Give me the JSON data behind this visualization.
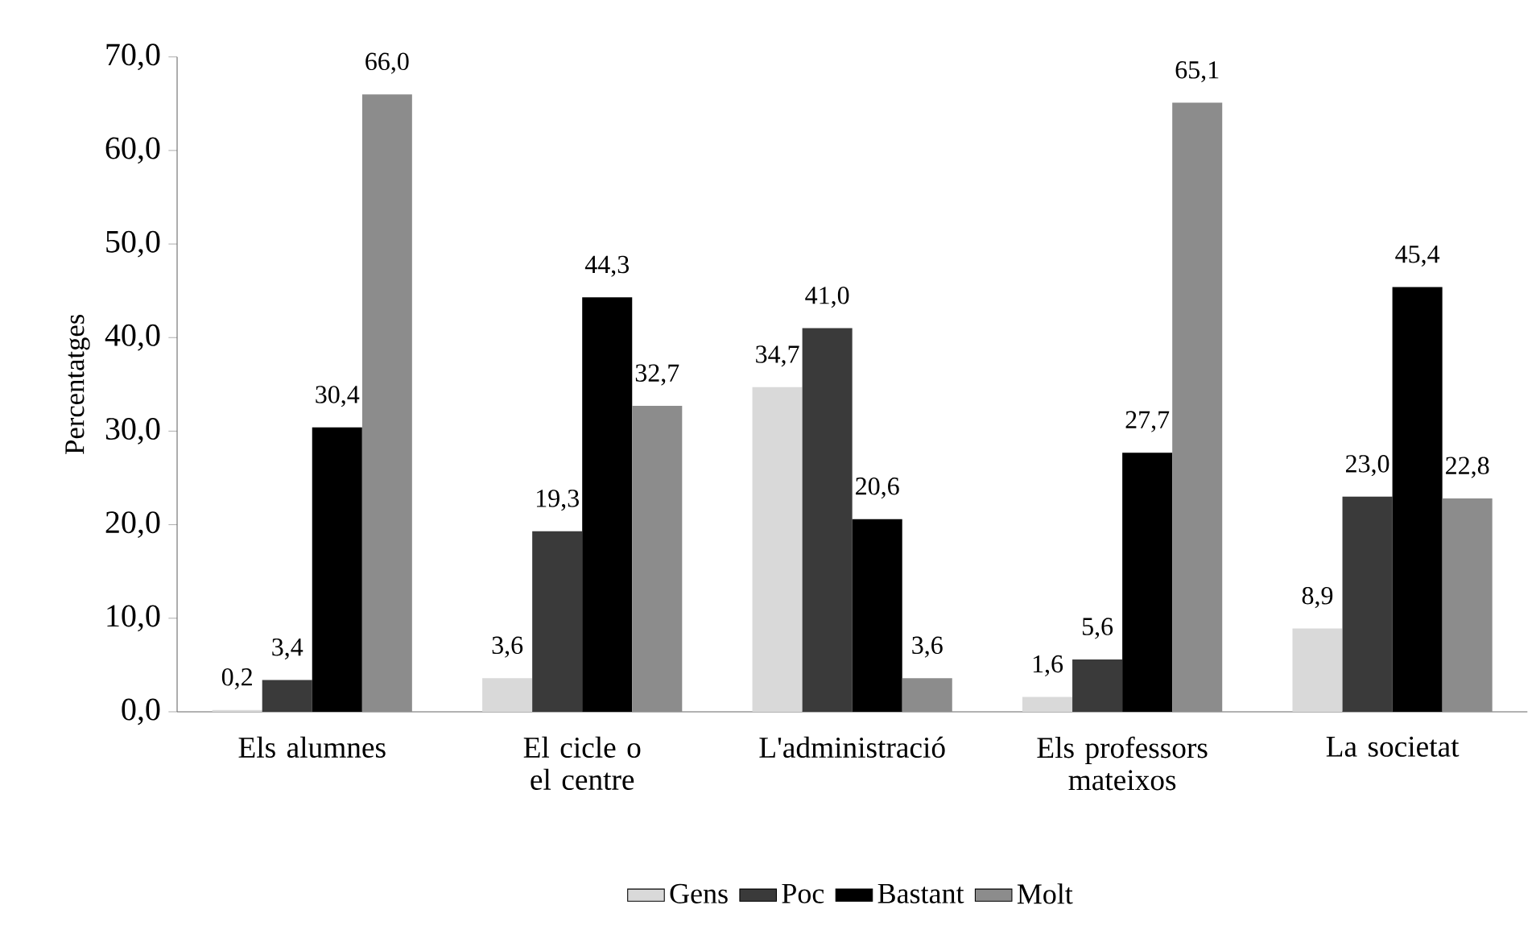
{
  "chart_data": {
    "type": "bar",
    "ylabel": "Percentatges",
    "categories": [
      "Els alumnes",
      "El cicle o el centre",
      "L'administració",
      "Els professors mateixos",
      "La societat"
    ],
    "series": [
      {
        "name": "Gens",
        "color": "#d9d9d9",
        "values": [
          0.2,
          3.6,
          34.7,
          1.6,
          8.9
        ],
        "value_labels": [
          "0,2",
          "3,6",
          "34,7",
          "1,6",
          "8,9"
        ]
      },
      {
        "name": "Poc",
        "color": "#3a3a3a",
        "values": [
          3.4,
          19.3,
          41.0,
          5.6,
          23.0
        ],
        "value_labels": [
          "3,4",
          "19,3",
          "41,0",
          "5,6",
          "23,0"
        ]
      },
      {
        "name": "Bastant",
        "color": "#000000",
        "values": [
          30.4,
          44.3,
          20.6,
          27.7,
          45.4
        ],
        "value_labels": [
          "30,4",
          "44,3",
          "20,6",
          "27,7",
          "45,4"
        ]
      },
      {
        "name": "Molt",
        "color": "#8c8c8c",
        "values": [
          66.0,
          32.7,
          3.6,
          65.1,
          22.8
        ],
        "value_labels": [
          "66,0",
          "32,7",
          "3,6",
          "65,1",
          "22,8"
        ]
      }
    ],
    "ylim": [
      0,
      70
    ],
    "yticks": [
      {
        "value": 0,
        "label": "0,0"
      },
      {
        "value": 10,
        "label": "10,0"
      },
      {
        "value": 20,
        "label": "20,0"
      },
      {
        "value": 30,
        "label": "30,0"
      },
      {
        "value": 40,
        "label": "40,0"
      },
      {
        "value": 50,
        "label": "50,0"
      },
      {
        "value": 60,
        "label": "60,0"
      },
      {
        "value": 70,
        "label": "70,0"
      }
    ],
    "legend": "bottom"
  }
}
